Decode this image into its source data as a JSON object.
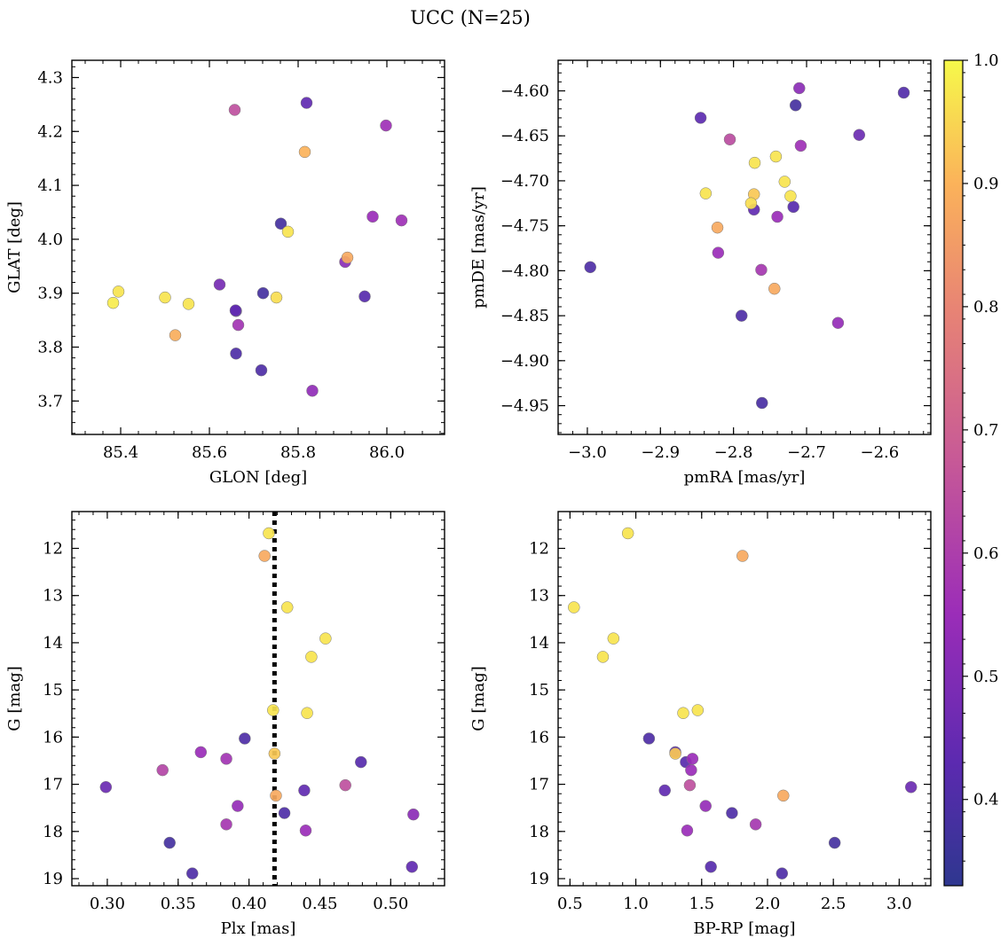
{
  "figure": {
    "title": "UCC (N=25)",
    "colorbar": {
      "range": [
        0.33,
        1.0
      ],
      "ticks": [
        0.4,
        0.5,
        0.6,
        0.7,
        0.8,
        0.9,
        1.0
      ],
      "tick_labels": [
        "0.4",
        "0.5",
        "0.6",
        "0.7",
        "0.8",
        "0.9",
        "1.0"
      ],
      "colormap": "plasma (truncated)"
    }
  },
  "chart_data": [
    {
      "type": "scatter",
      "xlabel": "GLON [deg]",
      "ylabel": "GLAT [deg]",
      "xlim": [
        85.29,
        86.13
      ],
      "ylim": [
        3.638,
        4.332
      ],
      "xticks": [
        85.4,
        85.6,
        85.8,
        86.0
      ],
      "xtick_labels": [
        "85.4",
        "85.6",
        "85.8",
        "86.0"
      ],
      "yticks": [
        3.7,
        3.8,
        3.9,
        4.0,
        4.1,
        4.2,
        4.3
      ],
      "ytick_labels": [
        "3.7",
        "3.8",
        "3.9",
        "4.0",
        "4.1",
        "4.2",
        "4.3"
      ],
      "grid": false,
      "points": [
        {
          "x": 85.383,
          "y": 3.882,
          "c": 0.98
        },
        {
          "x": 85.395,
          "y": 3.903,
          "c": 0.97
        },
        {
          "x": 85.5,
          "y": 3.892,
          "c": 0.97
        },
        {
          "x": 85.523,
          "y": 3.822,
          "c": 0.89
        },
        {
          "x": 85.553,
          "y": 3.88,
          "c": 0.97
        },
        {
          "x": 85.623,
          "y": 3.916,
          "c": 0.48
        },
        {
          "x": 85.657,
          "y": 4.24,
          "c": 0.65
        },
        {
          "x": 85.66,
          "y": 3.867,
          "c": 0.42
        },
        {
          "x": 85.659,
          "y": 3.868,
          "c": 0.44
        },
        {
          "x": 85.66,
          "y": 3.788,
          "c": 0.4
        },
        {
          "x": 85.665,
          "y": 3.841,
          "c": 0.57
        },
        {
          "x": 85.717,
          "y": 3.757,
          "c": 0.4
        },
        {
          "x": 85.721,
          "y": 3.9,
          "c": 0.38
        },
        {
          "x": 85.751,
          "y": 3.892,
          "c": 0.96
        },
        {
          "x": 85.761,
          "y": 4.029,
          "c": 0.38
        },
        {
          "x": 85.777,
          "y": 4.014,
          "c": 0.97
        },
        {
          "x": 85.815,
          "y": 4.162,
          "c": 0.9
        },
        {
          "x": 85.819,
          "y": 4.253,
          "c": 0.44
        },
        {
          "x": 85.832,
          "y": 3.719,
          "c": 0.53
        },
        {
          "x": 85.906,
          "y": 3.958,
          "c": 0.52
        },
        {
          "x": 85.911,
          "y": 3.966,
          "c": 0.88
        },
        {
          "x": 85.95,
          "y": 3.894,
          "c": 0.42
        },
        {
          "x": 85.968,
          "y": 4.042,
          "c": 0.55
        },
        {
          "x": 85.998,
          "y": 4.211,
          "c": 0.56
        },
        {
          "x": 86.033,
          "y": 4.035,
          "c": 0.56
        }
      ]
    },
    {
      "type": "scatter",
      "xlabel": "pmRA [mas/yr]",
      "ylabel": "pmDE [mas/yr]",
      "xlim": [
        -3.04,
        -2.53
      ],
      "ylim": [
        -4.982,
        -4.566
      ],
      "xticks": [
        -3.0,
        -2.9,
        -2.8,
        -2.7,
        -2.6
      ],
      "xtick_labels": [
        "−3.0",
        "−2.9",
        "−2.8",
        "−2.7",
        "−2.6"
      ],
      "yticks": [
        -4.95,
        -4.9,
        -4.85,
        -4.8,
        -4.75,
        -4.7,
        -4.65,
        -4.6
      ],
      "ytick_labels": [
        "−4.95",
        "−4.90",
        "−4.85",
        "−4.80",
        "−4.75",
        "−4.70",
        "−4.65",
        "−4.60"
      ],
      "grid": false,
      "points": [
        {
          "x": -2.996,
          "y": -4.796,
          "c": 0.4
        },
        {
          "x": -2.845,
          "y": -4.63,
          "c": 0.43
        },
        {
          "x": -2.838,
          "y": -4.714,
          "c": 0.97
        },
        {
          "x": -2.822,
          "y": -4.752,
          "c": 0.88
        },
        {
          "x": -2.821,
          "y": -4.78,
          "c": 0.55
        },
        {
          "x": -2.805,
          "y": -4.654,
          "c": 0.64
        },
        {
          "x": -2.789,
          "y": -4.85,
          "c": 0.4
        },
        {
          "x": -2.776,
          "y": -4.725,
          "c": 0.96
        },
        {
          "x": -2.772,
          "y": -4.715,
          "c": 0.93
        },
        {
          "x": -2.772,
          "y": -4.732,
          "c": 0.44
        },
        {
          "x": -2.771,
          "y": -4.68,
          "c": 0.97
        },
        {
          "x": -2.762,
          "y": -4.799,
          "c": 0.58
        },
        {
          "x": -2.761,
          "y": -4.947,
          "c": 0.39
        },
        {
          "x": -2.744,
          "y": -4.82,
          "c": 0.88
        },
        {
          "x": -2.742,
          "y": -4.673,
          "c": 0.97
        },
        {
          "x": -2.74,
          "y": -4.74,
          "c": 0.55
        },
        {
          "x": -2.73,
          "y": -4.701,
          "c": 0.97
        },
        {
          "x": -2.722,
          "y": -4.717,
          "c": 0.97
        },
        {
          "x": -2.718,
          "y": -4.729,
          "c": 0.42
        },
        {
          "x": -2.715,
          "y": -4.616,
          "c": 0.38
        },
        {
          "x": -2.71,
          "y": -4.597,
          "c": 0.52
        },
        {
          "x": -2.708,
          "y": -4.661,
          "c": 0.56
        },
        {
          "x": -2.657,
          "y": -4.858,
          "c": 0.54
        },
        {
          "x": -2.628,
          "y": -4.649,
          "c": 0.46
        },
        {
          "x": -2.567,
          "y": -4.602,
          "c": 0.41
        }
      ]
    },
    {
      "type": "scatter",
      "xlabel": "Plx [mas]",
      "ylabel": "G [mag]",
      "xlim": [
        0.275,
        0.538
      ],
      "ylim": [
        19.15,
        11.22
      ],
      "inverted_y": true,
      "xticks": [
        0.3,
        0.35,
        0.4,
        0.45,
        0.5
      ],
      "xtick_labels": [
        "0.30",
        "0.35",
        "0.40",
        "0.45",
        "0.50"
      ],
      "yticks": [
        12,
        13,
        14,
        15,
        16,
        17,
        18,
        19
      ],
      "ytick_labels": [
        "12",
        "13",
        "14",
        "15",
        "16",
        "17",
        "18",
        "19"
      ],
      "grid": false,
      "vline": {
        "x": 0.418,
        "style": "dotted",
        "color": "#000000"
      },
      "points": [
        {
          "x": 0.299,
          "y": 17.06,
          "c": 0.46
        },
        {
          "x": 0.339,
          "y": 16.7,
          "c": 0.62
        },
        {
          "x": 0.344,
          "y": 18.24,
          "c": 0.38
        },
        {
          "x": 0.36,
          "y": 18.89,
          "c": 0.4
        },
        {
          "x": 0.366,
          "y": 16.32,
          "c": 0.55
        },
        {
          "x": 0.384,
          "y": 17.85,
          "c": 0.58
        },
        {
          "x": 0.384,
          "y": 16.46,
          "c": 0.57
        },
        {
          "x": 0.392,
          "y": 17.46,
          "c": 0.54
        },
        {
          "x": 0.397,
          "y": 16.03,
          "c": 0.4
        },
        {
          "x": 0.411,
          "y": 12.16,
          "c": 0.88
        },
        {
          "x": 0.414,
          "y": 11.68,
          "c": 0.97
        },
        {
          "x": 0.417,
          "y": 15.43,
          "c": 0.97
        },
        {
          "x": 0.418,
          "y": 16.35,
          "c": 0.93
        },
        {
          "x": 0.419,
          "y": 17.24,
          "c": 0.88
        },
        {
          "x": 0.425,
          "y": 17.61,
          "c": 0.4
        },
        {
          "x": 0.427,
          "y": 13.25,
          "c": 0.97
        },
        {
          "x": 0.439,
          "y": 17.13,
          "c": 0.44
        },
        {
          "x": 0.44,
          "y": 17.98,
          "c": 0.55
        },
        {
          "x": 0.441,
          "y": 15.49,
          "c": 0.97
        },
        {
          "x": 0.444,
          "y": 14.3,
          "c": 0.97
        },
        {
          "x": 0.454,
          "y": 13.91,
          "c": 0.97
        },
        {
          "x": 0.468,
          "y": 17.02,
          "c": 0.65
        },
        {
          "x": 0.479,
          "y": 16.53,
          "c": 0.42
        },
        {
          "x": 0.515,
          "y": 18.75,
          "c": 0.44
        },
        {
          "x": 0.516,
          "y": 17.64,
          "c": 0.52
        }
      ]
    },
    {
      "type": "scatter",
      "xlabel": "BP-RP [mag]",
      "ylabel": "G [mag]",
      "xlim": [
        0.41,
        3.24
      ],
      "ylim": [
        19.15,
        11.22
      ],
      "inverted_y": true,
      "xticks": [
        0.5,
        1.0,
        1.5,
        2.0,
        2.5,
        3.0
      ],
      "xtick_labels": [
        "0.5",
        "1.0",
        "1.5",
        "2.0",
        "2.5",
        "3.0"
      ],
      "yticks": [
        12,
        13,
        14,
        15,
        16,
        17,
        18,
        19
      ],
      "ytick_labels": [
        "12",
        "13",
        "14",
        "15",
        "16",
        "17",
        "18",
        "19"
      ],
      "grid": false,
      "points": [
        {
          "x": 0.53,
          "y": 13.25,
          "c": 0.97
        },
        {
          "x": 0.75,
          "y": 14.3,
          "c": 0.97
        },
        {
          "x": 0.83,
          "y": 13.91,
          "c": 0.97
        },
        {
          "x": 0.94,
          "y": 11.68,
          "c": 0.97
        },
        {
          "x": 1.1,
          "y": 16.03,
          "c": 0.4
        },
        {
          "x": 1.22,
          "y": 17.13,
          "c": 0.44
        },
        {
          "x": 1.3,
          "y": 16.32,
          "c": 0.44
        },
        {
          "x": 1.3,
          "y": 16.35,
          "c": 0.93
        },
        {
          "x": 1.36,
          "y": 15.49,
          "c": 0.97
        },
        {
          "x": 1.38,
          "y": 16.53,
          "c": 0.42
        },
        {
          "x": 1.39,
          "y": 17.98,
          "c": 0.55
        },
        {
          "x": 1.41,
          "y": 17.02,
          "c": 0.65
        },
        {
          "x": 1.42,
          "y": 16.7,
          "c": 0.55
        },
        {
          "x": 1.43,
          "y": 16.46,
          "c": 0.55
        },
        {
          "x": 1.47,
          "y": 15.43,
          "c": 0.97
        },
        {
          "x": 1.53,
          "y": 17.46,
          "c": 0.54
        },
        {
          "x": 1.57,
          "y": 18.75,
          "c": 0.42
        },
        {
          "x": 1.73,
          "y": 17.61,
          "c": 0.4
        },
        {
          "x": 1.81,
          "y": 12.16,
          "c": 0.88
        },
        {
          "x": 1.91,
          "y": 17.85,
          "c": 0.58
        },
        {
          "x": 2.11,
          "y": 18.89,
          "c": 0.4
        },
        {
          "x": 2.12,
          "y": 17.24,
          "c": 0.88
        },
        {
          "x": 2.51,
          "y": 18.24,
          "c": 0.38
        },
        {
          "x": 3.09,
          "y": 17.06,
          "c": 0.46
        }
      ]
    }
  ]
}
